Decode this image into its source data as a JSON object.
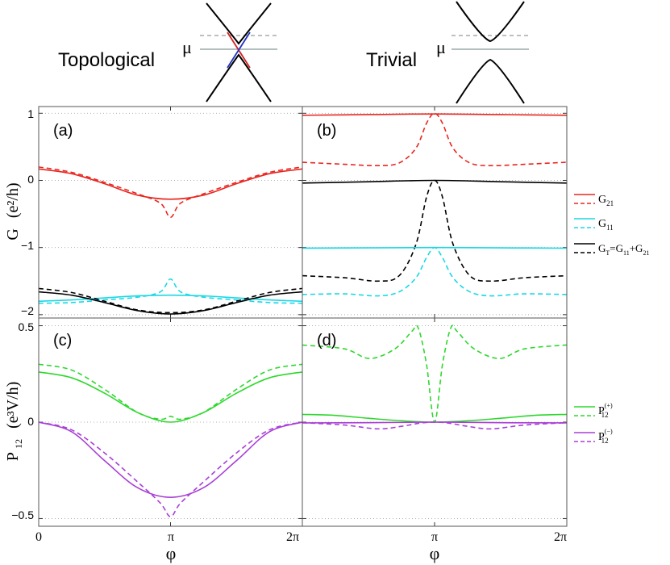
{
  "header": {
    "topological_label": "Topological",
    "trivial_label": "Trivial",
    "mu_symbol": "μ"
  },
  "axes_text": {
    "g_ylabel_main": "G",
    "g_ylabel_units": "(e²/h)",
    "p_ylabel_main": "P",
    "p_ylabel_sub": "12",
    "p_ylabel_units": "(e³V/h)",
    "xlabel": "φ",
    "x_ticks": [
      "0",
      "π",
      "2π"
    ],
    "g_ticks": [
      "1",
      "0",
      "−1",
      "−2"
    ],
    "p_ticks": [
      "0.5",
      "0",
      "−0.5"
    ]
  },
  "legend_g": [
    {
      "main": "G",
      "sub": "21",
      "color": "#e8261f"
    },
    {
      "main": "G",
      "sub": "11",
      "color": "#19d8e6"
    },
    {
      "main": "G",
      "sub": "T",
      "rest": "=G",
      "sub2": "11",
      "rest2": "+G",
      "sub3": "21",
      "color": "#000000"
    }
  ],
  "legend_p": [
    {
      "main": "P",
      "sub": "12",
      "sup": "(+)",
      "color": "#2ed82e"
    },
    {
      "main": "P",
      "sub": "12",
      "sup": "(−)",
      "color": "#a93fd6"
    }
  ],
  "chart_data": [
    {
      "id": "a",
      "label": "(a)",
      "type": "line",
      "xlabel": "φ",
      "ylabel": "G (e²/h)",
      "ylim": [
        -2.05,
        1.1
      ],
      "xlim": [
        0,
        6.2832
      ],
      "series": [
        {
          "name": "G21 solid",
          "color": "#e8261f",
          "dashed": false,
          "x": [
            0,
            0.785,
            1.571,
            2.356,
            3.1416,
            3.927,
            4.712,
            5.498,
            6.2832
          ],
          "y": [
            0.17,
            0.1,
            -0.05,
            -0.22,
            -0.28,
            -0.22,
            -0.05,
            0.1,
            0.17
          ]
        },
        {
          "name": "G21 dashed",
          "color": "#e8261f",
          "dashed": true,
          "x": [
            0,
            0.785,
            1.571,
            2.356,
            2.9,
            3.1416,
            3.38,
            3.927,
            4.712,
            5.498,
            6.2832
          ],
          "y": [
            0.2,
            0.12,
            -0.03,
            -0.2,
            -0.34,
            -0.55,
            -0.34,
            -0.2,
            -0.03,
            0.12,
            0.2
          ]
        },
        {
          "name": "G11 solid",
          "color": "#19d8e6",
          "dashed": false,
          "x": [
            0,
            0.785,
            1.571,
            2.356,
            3.1416,
            3.927,
            4.712,
            5.498,
            6.2832
          ],
          "y": [
            -1.8,
            -1.78,
            -1.75,
            -1.72,
            -1.71,
            -1.72,
            -1.75,
            -1.78,
            -1.8
          ]
        },
        {
          "name": "G11 dashed",
          "color": "#19d8e6",
          "dashed": true,
          "x": [
            0,
            0.785,
            1.571,
            2.356,
            2.9,
            3.1416,
            3.38,
            3.927,
            4.712,
            5.498,
            6.2832
          ],
          "y": [
            -1.83,
            -1.82,
            -1.78,
            -1.74,
            -1.66,
            -1.47,
            -1.66,
            -1.74,
            -1.78,
            -1.82,
            -1.83
          ]
        },
        {
          "name": "GT solid",
          "color": "#000000",
          "dashed": false,
          "x": [
            0,
            0.785,
            1.571,
            2.356,
            3.1416,
            3.927,
            4.712,
            5.498,
            6.2832
          ],
          "y": [
            -1.66,
            -1.71,
            -1.82,
            -1.94,
            -1.99,
            -1.94,
            -1.82,
            -1.71,
            -1.66
          ]
        },
        {
          "name": "GT dashed",
          "color": "#000000",
          "dashed": true,
          "x": [
            0,
            0.785,
            1.571,
            2.356,
            3.1416,
            3.927,
            4.712,
            5.498,
            6.2832
          ],
          "y": [
            -1.61,
            -1.67,
            -1.8,
            -1.93,
            -1.97,
            -1.93,
            -1.8,
            -1.67,
            -1.61
          ]
        }
      ]
    },
    {
      "id": "b",
      "label": "(b)",
      "type": "line",
      "xlabel": "φ",
      "ylabel": "G (e²/h)",
      "ylim": [
        -2.05,
        1.1
      ],
      "xlim": [
        0,
        6.2832
      ],
      "series": [
        {
          "name": "G21 solid",
          "color": "#e8261f",
          "dashed": false,
          "x": [
            0,
            1.571,
            3.1416,
            4.712,
            6.2832
          ],
          "y": [
            0.97,
            0.98,
            0.99,
            0.98,
            0.97
          ]
        },
        {
          "name": "G21 dashed",
          "color": "#e8261f",
          "dashed": true,
          "x": [
            0,
            1.0,
            1.8,
            2.3,
            2.7,
            2.95,
            3.1416,
            3.33,
            3.58,
            3.98,
            4.48,
            5.28,
            6.2832
          ],
          "y": [
            0.27,
            0.24,
            0.22,
            0.26,
            0.48,
            0.85,
            1.0,
            0.85,
            0.48,
            0.26,
            0.22,
            0.24,
            0.27
          ]
        },
        {
          "name": "GT solid",
          "color": "#000000",
          "dashed": false,
          "x": [
            0,
            1.571,
            3.1416,
            4.712,
            6.2832
          ],
          "y": [
            -0.04,
            -0.02,
            0.0,
            -0.02,
            -0.04
          ]
        },
        {
          "name": "GT dashed",
          "color": "#000000",
          "dashed": true,
          "x": [
            0,
            1.0,
            1.8,
            2.3,
            2.7,
            2.95,
            3.1416,
            3.33,
            3.58,
            3.98,
            4.48,
            5.28,
            6.2832
          ],
          "y": [
            -1.42,
            -1.45,
            -1.5,
            -1.42,
            -0.95,
            -0.25,
            0.0,
            -0.25,
            -0.95,
            -1.42,
            -1.5,
            -1.45,
            -1.42
          ]
        },
        {
          "name": "G11 solid",
          "color": "#19d8e6",
          "dashed": false,
          "x": [
            0,
            1.571,
            3.1416,
            4.712,
            6.2832
          ],
          "y": [
            -1.01,
            -1.005,
            -1.0,
            -1.005,
            -1.01
          ]
        },
        {
          "name": "G11 dashed",
          "color": "#19d8e6",
          "dashed": true,
          "x": [
            0,
            1.0,
            1.8,
            2.3,
            2.7,
            2.95,
            3.1416,
            3.33,
            3.58,
            3.98,
            4.48,
            5.28,
            6.2832
          ],
          "y": [
            -1.7,
            -1.69,
            -1.72,
            -1.66,
            -1.45,
            -1.15,
            -1.0,
            -1.15,
            -1.45,
            -1.66,
            -1.72,
            -1.69,
            -1.7
          ]
        }
      ]
    },
    {
      "id": "c",
      "label": "(c)",
      "type": "line",
      "xlabel": "φ",
      "ylabel": "P12 (e³V/h)",
      "ylim": [
        -0.54,
        0.54
      ],
      "xlim": [
        0,
        6.2832
      ],
      "series": [
        {
          "name": "P12(+) solid",
          "color": "#2ed82e",
          "dashed": false,
          "x": [
            0,
            0.785,
            1.571,
            2.356,
            3.1416,
            3.927,
            4.712,
            5.498,
            6.2832
          ],
          "y": [
            0.26,
            0.23,
            0.15,
            0.05,
            0.0,
            0.05,
            0.15,
            0.23,
            0.26
          ]
        },
        {
          "name": "P12(+) dashed",
          "color": "#2ed82e",
          "dashed": true,
          "x": [
            0,
            0.785,
            1.571,
            2.356,
            2.9,
            3.1416,
            3.38,
            3.927,
            4.712,
            5.498,
            6.2832
          ],
          "y": [
            0.3,
            0.27,
            0.17,
            0.05,
            0.015,
            0.03,
            0.015,
            0.05,
            0.17,
            0.27,
            0.3
          ]
        },
        {
          "name": "P12(-) solid",
          "color": "#a93fd6",
          "dashed": false,
          "x": [
            0,
            0.785,
            1.571,
            2.356,
            3.1416,
            3.927,
            4.712,
            5.498,
            6.2832
          ],
          "y": [
            0.0,
            -0.05,
            -0.2,
            -0.34,
            -0.39,
            -0.34,
            -0.2,
            -0.05,
            0.0
          ]
        },
        {
          "name": "P12(-) dashed",
          "color": "#a93fd6",
          "dashed": true,
          "x": [
            0,
            0.785,
            1.571,
            2.356,
            2.9,
            3.1416,
            3.38,
            3.927,
            4.712,
            5.498,
            6.2832
          ],
          "y": [
            0.0,
            -0.04,
            -0.16,
            -0.31,
            -0.42,
            -0.49,
            -0.42,
            -0.31,
            -0.16,
            -0.04,
            0.0
          ]
        }
      ]
    },
    {
      "id": "d",
      "label": "(d)",
      "type": "line",
      "xlabel": "φ",
      "ylabel": "P12 (e³V/h)",
      "ylim": [
        -0.54,
        0.54
      ],
      "xlim": [
        0,
        6.2832
      ],
      "series": [
        {
          "name": "P12(+) solid",
          "color": "#2ed82e",
          "dashed": false,
          "x": [
            0,
            0.785,
            1.571,
            2.356,
            3.1416,
            3.927,
            4.712,
            5.498,
            6.2832
          ],
          "y": [
            0.04,
            0.035,
            0.02,
            0.007,
            0.0,
            0.007,
            0.02,
            0.035,
            0.04
          ]
        },
        {
          "name": "P12(+) dashed",
          "color": "#2ed82e",
          "dashed": true,
          "x": [
            0,
            1.0,
            1.6,
            2.2,
            2.6,
            2.75,
            2.95,
            3.1416,
            3.33,
            3.53,
            3.68,
            4.08,
            4.68,
            5.28,
            6.2832
          ],
          "y": [
            0.4,
            0.38,
            0.33,
            0.38,
            0.47,
            0.49,
            0.3,
            0.0,
            0.3,
            0.49,
            0.47,
            0.38,
            0.33,
            0.38,
            0.4
          ]
        },
        {
          "name": "P12(-) solid",
          "color": "#a93fd6",
          "dashed": false,
          "x": [
            0,
            1.571,
            3.1416,
            4.712,
            6.2832
          ],
          "y": [
            -0.004,
            -0.003,
            0.0,
            -0.003,
            -0.004
          ]
        },
        {
          "name": "P12(-) dashed",
          "color": "#a93fd6",
          "dashed": true,
          "x": [
            0,
            1.0,
            1.8,
            2.4,
            2.8,
            3.1416,
            3.48,
            3.88,
            4.48,
            5.28,
            6.2832
          ],
          "y": [
            -0.003,
            -0.015,
            -0.035,
            -0.02,
            -0.005,
            0.0,
            -0.005,
            -0.02,
            -0.035,
            -0.015,
            -0.003
          ]
        }
      ]
    }
  ]
}
